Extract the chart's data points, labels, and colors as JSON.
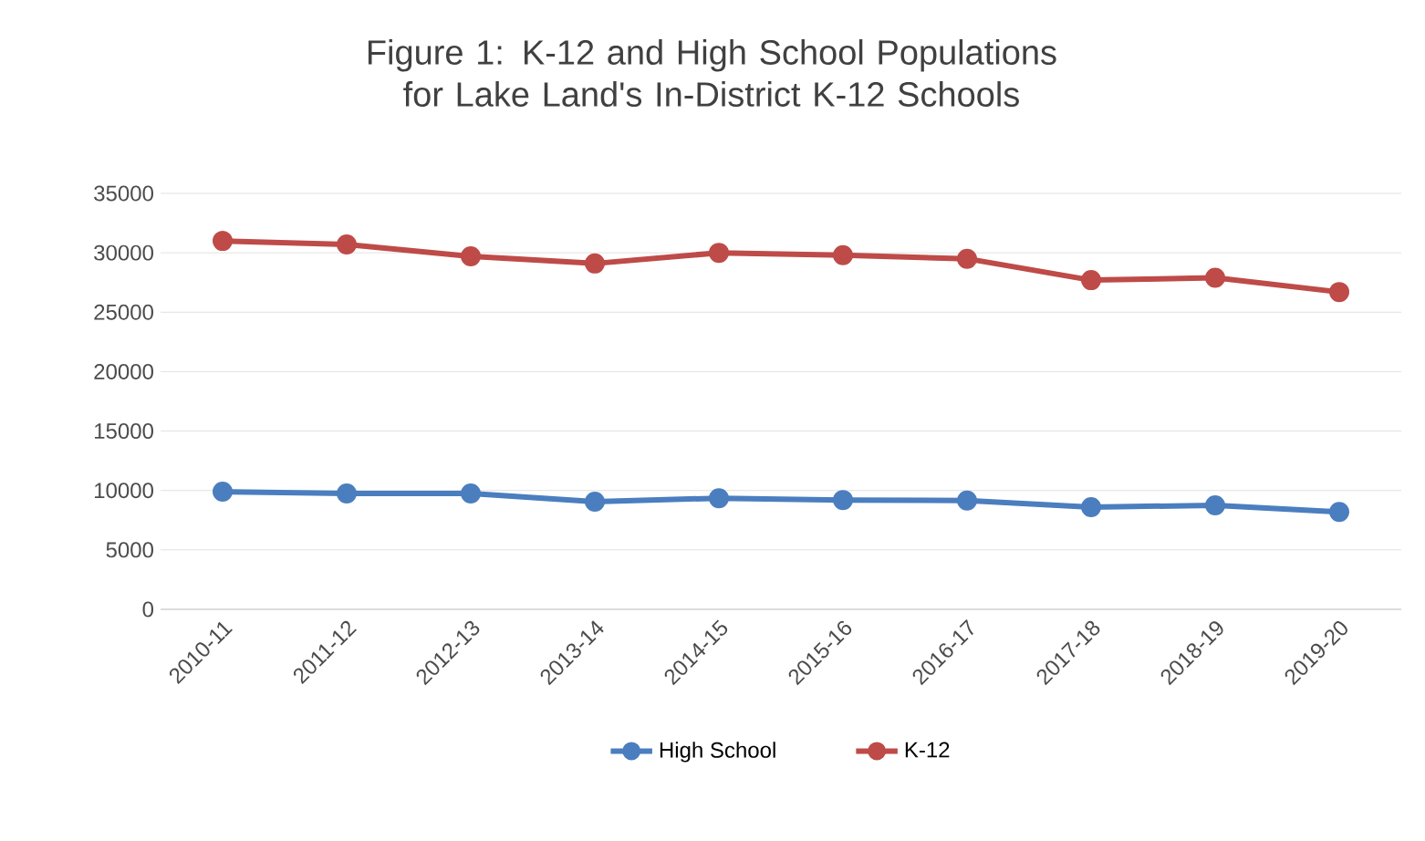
{
  "chart_data": {
    "type": "line",
    "title": "Figure 1: K-12 and High School Populations for Lake Land's In-District K-12 Schools",
    "categories": [
      "2010-11",
      "2011-12",
      "2012-13",
      "2013-14",
      "2014-15",
      "2015-16",
      "2016-17",
      "2017-18",
      "2018-19",
      "2019-20"
    ],
    "series": [
      {
        "name": "High School",
        "color": "#4a7ebf",
        "values": [
          9900,
          9750,
          9750,
          9050,
          9350,
          9200,
          9150,
          8600,
          8750,
          8200
        ]
      },
      {
        "name": "K-12",
        "color": "#be4b48",
        "values": [
          31000,
          30700,
          29700,
          29100,
          30000,
          29800,
          29500,
          27700,
          27900,
          26700
        ]
      }
    ],
    "ylim": [
      0,
      35000
    ],
    "yticks": [
      0,
      5000,
      10000,
      15000,
      20000,
      25000,
      30000,
      35000
    ],
    "grid": "y",
    "legend": "bottom",
    "marker": "circle",
    "line_style": "solid"
  }
}
